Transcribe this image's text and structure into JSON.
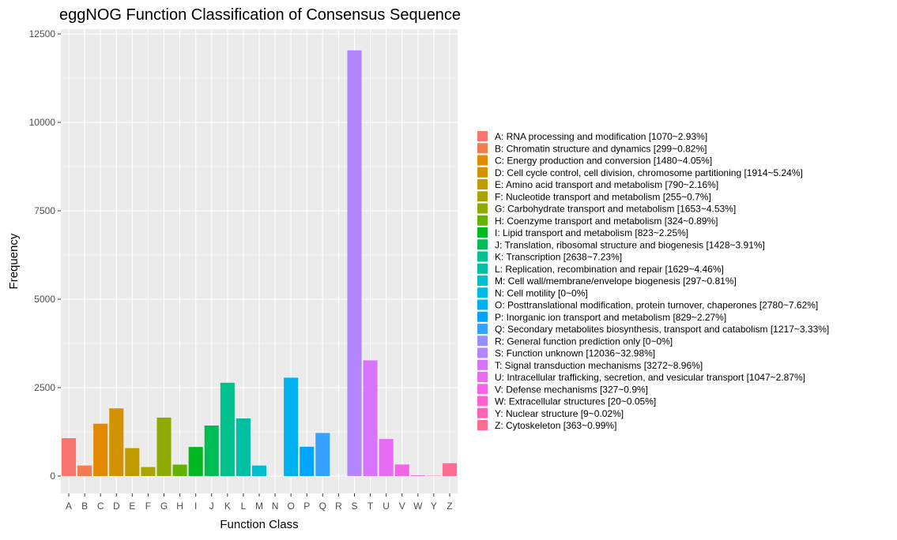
{
  "chart_data": {
    "type": "bar",
    "title": "eggNOG Function Classification of Consensus Sequence",
    "xlabel": "Function Class",
    "ylabel": "Frequency",
    "ylim": [
      0,
      12500
    ],
    "yticks": [
      0,
      2500,
      5000,
      7500,
      10000,
      12500
    ],
    "grid": true,
    "legend_position": "right",
    "categories": [
      "A",
      "B",
      "C",
      "D",
      "E",
      "F",
      "G",
      "H",
      "I",
      "J",
      "K",
      "L",
      "M",
      "N",
      "O",
      "P",
      "Q",
      "R",
      "S",
      "T",
      "U",
      "V",
      "W",
      "Y",
      "Z"
    ],
    "values": [
      1070,
      299,
      1480,
      1914,
      790,
      255,
      1653,
      324,
      823,
      1428,
      2638,
      1629,
      297,
      0,
      2780,
      829,
      1217,
      0,
      12036,
      3272,
      1047,
      327,
      20,
      9,
      363
    ],
    "colors": [
      "#F8766D",
      "#F07E50",
      "#E38900",
      "#D39200",
      "#C09B00",
      "#A9A400",
      "#8DAB00",
      "#64B200",
      "#00B81F",
      "#00BC56",
      "#00C08B",
      "#00BFA2",
      "#00BDD0",
      "#00B9E3",
      "#00B1F0",
      "#00A5FF",
      "#35A2FF",
      "#9590FF",
      "#B385FF",
      "#D774FD",
      "#E76BF3",
      "#F265E7",
      "#FD61D1",
      "#FF63B6",
      "#FF6C91"
    ],
    "legend": [
      "A: RNA processing and modification [1070~2.93%]",
      "B: Chromatin structure and dynamics [299~0.82%]",
      "C: Energy production and conversion [1480~4.05%]",
      "D: Cell cycle control, cell division, chromosome partitioning [1914~5.24%]",
      "E: Amino acid transport and metabolism [790~2.16%]",
      "F: Nucleotide transport and metabolism [255~0.7%]",
      "G: Carbohydrate transport and metabolism [1653~4.53%]",
      "H: Coenzyme transport and metabolism [324~0.89%]",
      "I: Lipid transport and metabolism [823~2.25%]",
      "J: Translation, ribosomal structure and biogenesis [1428~3.91%]",
      "K: Transcription [2638~7.23%]",
      "L: Replication, recombination and repair [1629~4.46%]",
      "M: Cell wall/membrane/envelope biogenesis [297~0.81%]",
      "N: Cell motility [0~0%]",
      "O: Posttranslational modification, protein turnover, chaperones [2780~7.62%]",
      "P: Inorganic ion transport and metabolism [829~2.27%]",
      "Q: Secondary metabolites biosynthesis, transport and catabolism [1217~3.33%]",
      "R: General function prediction only [0~0%]",
      "S: Function unknown [12036~32.98%]",
      "T: Signal transduction mechanisms [3272~8.96%]",
      "U: Intracellular trafficking, secretion, and vesicular transport [1047~2.87%]",
      "V: Defense mechanisms [327~0.9%]",
      "W: Extracellular structures [20~0.05%]",
      "Y: Nuclear structure [9~0.02%]",
      "Z: Cytoskeleton [363~0.99%]"
    ]
  }
}
